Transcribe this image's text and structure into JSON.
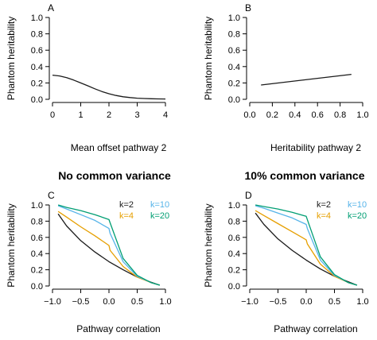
{
  "headings": {
    "left": "No common variance",
    "right": "10% common variance"
  },
  "colors": {
    "black": "#1a1a1a",
    "orange": "#e69f00",
    "skyblue": "#56b4e9",
    "green": "#009e73",
    "axis": "#000000"
  },
  "chart_data": [
    {
      "panel": "A",
      "type": "line",
      "xlabel": "Mean offset pathway 2",
      "ylabel": "Phantom heritability",
      "xlim": [
        0,
        4
      ],
      "ylim": [
        0,
        1
      ],
      "xticks": [
        0,
        1,
        2,
        3,
        4
      ],
      "yticks": [
        0.0,
        0.2,
        0.4,
        0.6,
        0.8,
        1.0
      ],
      "series": [
        {
          "color": "black",
          "x": [
            0,
            0.25,
            0.5,
            0.75,
            1.0,
            1.25,
            1.5,
            1.75,
            2.0,
            2.25,
            2.5,
            2.75,
            3.0,
            3.25,
            3.5,
            3.75,
            4.0
          ],
          "y": [
            0.295,
            0.285,
            0.265,
            0.235,
            0.2,
            0.165,
            0.128,
            0.095,
            0.068,
            0.047,
            0.031,
            0.021,
            0.014,
            0.01,
            0.007,
            0.005,
            0.004
          ]
        }
      ]
    },
    {
      "panel": "B",
      "type": "line",
      "xlabel": "Heritability pathway 2",
      "ylabel": "Phantom heritability",
      "xlim": [
        0,
        1
      ],
      "ylim": [
        0,
        1
      ],
      "xticks": [
        0.0,
        0.2,
        0.4,
        0.6,
        0.8,
        1.0
      ],
      "yticks": [
        0.0,
        0.2,
        0.4,
        0.6,
        0.8,
        1.0
      ],
      "series": [
        {
          "color": "black",
          "x": [
            0.1,
            0.9
          ],
          "y": [
            0.175,
            0.305
          ]
        }
      ]
    },
    {
      "panel": "C",
      "type": "line",
      "xlabel": "Pathway correlation",
      "ylabel": "Phantom heritability",
      "xlim": [
        -1,
        1
      ],
      "ylim": [
        0,
        1
      ],
      "xticks": [
        -1.0,
        -0.5,
        0.0,
        0.5,
        1.0
      ],
      "xticklabels": [
        "−1.0",
        "−0.5",
        "0.0",
        "0.5",
        "1.0"
      ],
      "yticks": [
        0.0,
        0.2,
        0.4,
        0.6,
        0.8,
        1.0
      ],
      "legend": [
        {
          "label": "k=2",
          "color": "black"
        },
        {
          "label": "k=4",
          "color": "orange"
        },
        {
          "label": "k=10",
          "color": "skyblue"
        },
        {
          "label": "k=20",
          "color": "green"
        }
      ],
      "series": [
        {
          "name": "k=2",
          "color": "black",
          "x": [
            -0.9,
            -0.75,
            -0.5,
            -0.25,
            0.0,
            0.25,
            0.5,
            0.75,
            0.9
          ],
          "y": [
            0.89,
            0.74,
            0.56,
            0.42,
            0.3,
            0.2,
            0.11,
            0.045,
            0.01
          ]
        },
        {
          "name": "k=4",
          "color": "orange",
          "x": [
            -0.9,
            -0.75,
            -0.5,
            -0.25,
            0.0,
            0.02,
            0.25,
            0.5,
            0.75,
            0.9
          ],
          "y": [
            0.92,
            0.85,
            0.73,
            0.62,
            0.5,
            0.44,
            0.24,
            0.11,
            0.04,
            0.01
          ]
        },
        {
          "name": "k=10",
          "color": "skyblue",
          "x": [
            -0.9,
            -0.75,
            -0.5,
            -0.25,
            0.0,
            0.02,
            0.25,
            0.5,
            0.75,
            0.9
          ],
          "y": [
            0.99,
            0.95,
            0.88,
            0.81,
            0.71,
            0.65,
            0.3,
            0.12,
            0.04,
            0.01
          ]
        },
        {
          "name": "k=20",
          "color": "green",
          "x": [
            -0.9,
            -0.75,
            -0.5,
            -0.25,
            0.0,
            0.02,
            0.25,
            0.5,
            0.75,
            0.9
          ],
          "y": [
            1.0,
            0.97,
            0.93,
            0.88,
            0.82,
            0.78,
            0.34,
            0.13,
            0.04,
            0.01
          ]
        }
      ]
    },
    {
      "panel": "D",
      "type": "line",
      "xlabel": "Pathway correlation",
      "ylabel": "Phantom heritability",
      "xlim": [
        -1,
        1
      ],
      "ylim": [
        0,
        1
      ],
      "xticks": [
        -1.0,
        -0.5,
        0.0,
        0.5,
        1.0
      ],
      "xticklabels": [
        "−1.0",
        "−0.5",
        "0.0",
        "0.5",
        "1.0"
      ],
      "yticks": [
        0.0,
        0.2,
        0.4,
        0.6,
        0.8,
        1.0
      ],
      "legend": [
        {
          "label": "k=2",
          "color": "black"
        },
        {
          "label": "k=4",
          "color": "orange"
        },
        {
          "label": "k=10",
          "color": "skyblue"
        },
        {
          "label": "k=20",
          "color": "green"
        }
      ],
      "series": [
        {
          "name": "k=2",
          "color": "black",
          "x": [
            -0.9,
            -0.75,
            -0.5,
            -0.25,
            0.0,
            0.25,
            0.5,
            0.75,
            0.9
          ],
          "y": [
            0.9,
            0.76,
            0.58,
            0.44,
            0.32,
            0.21,
            0.12,
            0.05,
            0.01
          ]
        },
        {
          "name": "k=4",
          "color": "orange",
          "x": [
            -0.9,
            -0.75,
            -0.5,
            -0.25,
            0.0,
            0.02,
            0.25,
            0.5,
            0.75,
            0.9
          ],
          "y": [
            0.93,
            0.87,
            0.77,
            0.67,
            0.57,
            0.52,
            0.27,
            0.12,
            0.04,
            0.01
          ]
        },
        {
          "name": "k=10",
          "color": "skyblue",
          "x": [
            -0.9,
            -0.75,
            -0.5,
            -0.25,
            0.0,
            0.02,
            0.25,
            0.5,
            0.75,
            0.9
          ],
          "y": [
            0.99,
            0.96,
            0.9,
            0.84,
            0.76,
            0.71,
            0.32,
            0.13,
            0.04,
            0.01
          ]
        },
        {
          "name": "k=20",
          "color": "green",
          "x": [
            -0.9,
            -0.75,
            -0.5,
            -0.25,
            0.0,
            0.02,
            0.25,
            0.5,
            0.75,
            0.9
          ],
          "y": [
            1.0,
            0.98,
            0.95,
            0.91,
            0.86,
            0.82,
            0.36,
            0.14,
            0.04,
            0.01
          ]
        }
      ]
    }
  ]
}
